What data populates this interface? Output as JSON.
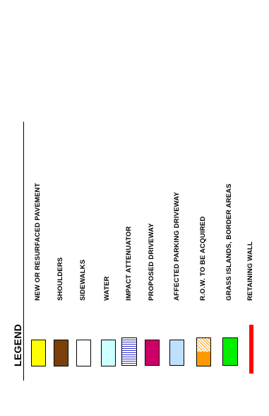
{
  "legend": {
    "title": "LEGEND",
    "items": [
      {
        "label": "NEW  OR  RESURFACED  PAVEMENT",
        "fill": "#ffff00"
      },
      {
        "label": "SHOULDERS",
        "fill": "#7b3f0a"
      },
      {
        "label": "SIDEWALKS",
        "fill": "#ffffff"
      },
      {
        "label": "WATER",
        "fill": "#ccffff"
      },
      {
        "label": "IMPACT  ATTENUATOR",
        "fill": "#ffffff",
        "pattern": "horizontal-blue-lines"
      },
      {
        "label": "PROPOSED  DRIVEWAY",
        "fill": "#cc0066"
      },
      {
        "label": "AFFECTED  PARKING  DRIVEWAY",
        "fill": "#bfdfff"
      },
      {
        "label": "R.O.W.  TO  BE  ACQUIRED",
        "fill": "#ff9900",
        "pattern": "diagonal-hatch"
      },
      {
        "label": "GRASS  ISLANDS,  BORDER  AREAS",
        "fill": "#00ee00"
      },
      {
        "label": "RETAINING  WALL",
        "fill": "#ff0000"
      }
    ]
  }
}
